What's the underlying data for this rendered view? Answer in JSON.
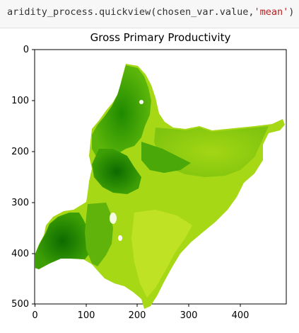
{
  "notebook": {
    "code": {
      "call": "aridity_process.quickview(chosen_var.value,",
      "arg_string": "'mean'",
      "close": ")"
    }
  },
  "plot": {
    "title": "Gross Primary Productivity",
    "colors": {
      "light": "#b8e01e",
      "mid": "#6fbf0c",
      "dark": "#1f8a00",
      "darkest": "#0c6b00",
      "frame": "#000000"
    }
  },
  "chart_data": {
    "type": "heatmap",
    "title": "Gross Primary Productivity",
    "xlim": [
      0,
      490
    ],
    "ylim": [
      510,
      0
    ],
    "x_ticks": [
      "0",
      "100",
      "200",
      "300",
      "400"
    ],
    "y_ticks": [
      "0",
      "100",
      "200",
      "300",
      "400",
      "500"
    ],
    "colormap": "green-yellow"
  }
}
